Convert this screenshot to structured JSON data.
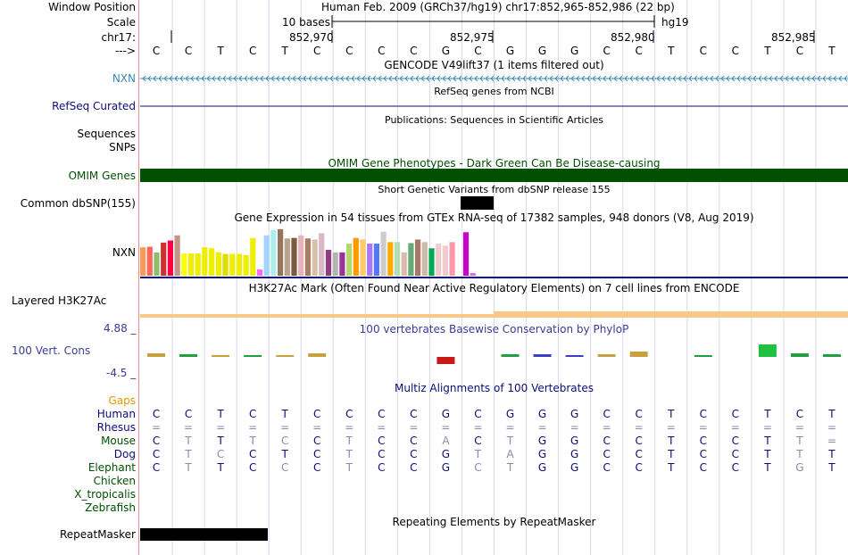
{
  "header": {
    "window_position_label": "Window Position",
    "window_position_value": "Human Feb. 2009 (GRCh37/hg19)    chr17:852,965-852,986 (22 bp)",
    "scale_label": "Scale",
    "scale_text": "10 bases",
    "scale_assembly": "hg19",
    "chrom_label": "chr17:",
    "positions": [
      "852,970",
      "852,975",
      "852,980",
      "852,985"
    ],
    "arrow_label": "--->",
    "sequence": [
      "C",
      "C",
      "T",
      "C",
      "T",
      "C",
      "C",
      "C",
      "C",
      "G",
      "C",
      "G",
      "G",
      "G",
      "C",
      "C",
      "T",
      "C",
      "C",
      "T",
      "C",
      "T"
    ]
  },
  "tracks": {
    "gencode": {
      "title": "GENCODE V49lift37 (1 items filtered out)",
      "label": "NXN",
      "color": "#3a89b4"
    },
    "refseq": {
      "title": "RefSeq genes from NCBI",
      "label": "RefSeq Curated",
      "color": "#0c0c78"
    },
    "publications": {
      "title": "Publications: Sequences in Scientific Articles",
      "label": "Sequences"
    },
    "snps": {
      "label": "SNPs"
    },
    "omim": {
      "title": "OMIM Gene Phenotypes - Dark Green Can Be Disease-causing",
      "label": "OMIM Genes",
      "color": "#005000"
    },
    "dbsnp": {
      "title": "Short Genetic Variants from dbSNP release 155",
      "label": "Common dbSNP(155)"
    },
    "gtex": {
      "title": "Gene Expression in 54 tissues from GTEx RNA-seq of 17382 samples, 948 donors (V8, Aug 2019)",
      "label": "NXN"
    },
    "h3k27ac": {
      "title": "H3K27Ac Mark (Often Found Near Active Regulatory Elements) on 7 cell lines from ENCODE",
      "label": "Layered H3K27Ac",
      "color": "#f8c888"
    },
    "phylop": {
      "title": "100 vertebrates Basewise Conservation by PhyloP",
      "label": "100 Vert. Cons",
      "max": "4.88 _",
      "min": "-4.5 _",
      "color": "#3c3c96"
    },
    "multiz": {
      "title": "Multiz Alignments of 100 Vertebrates",
      "gaps_label": "Gaps",
      "species": [
        {
          "name": "Human",
          "color": "#0c0c78",
          "bases": [
            "C",
            "C",
            "T",
            "C",
            "T",
            "C",
            "C",
            "C",
            "C",
            "G",
            "C",
            "G",
            "G",
            "G",
            "C",
            "C",
            "T",
            "C",
            "C",
            "T",
            "C",
            "T"
          ]
        },
        {
          "name": "Rhesus",
          "color": "#0c0c78",
          "bases": [
            "=",
            "=",
            "=",
            "=",
            "=",
            "=",
            "=",
            "=",
            "=",
            "=",
            "=",
            "=",
            "=",
            "=",
            "=",
            "=",
            "=",
            "=",
            "=",
            "=",
            "=",
            "="
          ]
        },
        {
          "name": "Mouse",
          "color": "#005000",
          "bases": [
            "C",
            "T",
            "T",
            "T",
            "C",
            "C",
            "T",
            "C",
            "C",
            "A",
            "C",
            "T",
            "G",
            "G",
            "C",
            "C",
            "T",
            "C",
            "C",
            "T",
            "T",
            "="
          ]
        },
        {
          "name": "Dog",
          "color": "#0c0c78",
          "bases": [
            "C",
            "T",
            "C",
            "C",
            "T",
            "C",
            "T",
            "C",
            "C",
            "G",
            "T",
            "A",
            "G",
            "G",
            "C",
            "C",
            "T",
            "C",
            "C",
            "T",
            "T",
            "T"
          ]
        },
        {
          "name": "Elephant",
          "color": "#005000",
          "bases": [
            "C",
            "T",
            "T",
            "C",
            "C",
            "C",
            "T",
            "C",
            "C",
            "G",
            "C",
            "T",
            "G",
            "G",
            "C",
            "C",
            "T",
            "C",
            "C",
            "T",
            "G",
            "T"
          ]
        },
        {
          "name": "Chicken",
          "color": "#005000",
          "bases": []
        },
        {
          "name": "X_tropicalis",
          "color": "#005000",
          "bases": []
        },
        {
          "name": "Zebrafish",
          "color": "#005000",
          "bases": []
        }
      ],
      "faded": {
        "Rhesus": [
          0,
          1,
          2,
          3,
          4,
          5,
          6,
          7,
          8,
          9,
          10,
          11,
          12,
          13,
          14,
          15,
          16,
          17,
          18,
          19,
          20,
          21
        ],
        "Mouse": [
          1,
          3,
          4,
          6,
          9,
          11,
          20,
          21
        ],
        "Dog": [
          1,
          2,
          6,
          10,
          11,
          20
        ],
        "Elephant": [
          1,
          4,
          6,
          10,
          11,
          20
        ]
      }
    },
    "repeatmasker": {
      "title": "Repeating Elements by RepeatMasker",
      "label": "RepeatMasker"
    }
  },
  "gtex_values": [
    0.55,
    0.56,
    0.45,
    0.64,
    0.68,
    0.78,
    0.43,
    0.43,
    0.43,
    0.55,
    0.53,
    0.45,
    0.42,
    0.42,
    0.42,
    0.4,
    0.73,
    0.12,
    0.78,
    0.88,
    0.9,
    0.72,
    0.73,
    0.78,
    0.72,
    0.7,
    0.82,
    0.5,
    0.45,
    0.45,
    0.62,
    0.73,
    0.7,
    0.62,
    0.62,
    0.85,
    0.65,
    0.65,
    0.45,
    0.63,
    0.7,
    0.65,
    0.53,
    0.62,
    0.58,
    0.65,
    0.92,
    0.84,
    0.05
  ],
  "gtex_colors": [
    "#ff9955",
    "#ff6655",
    "#8cbe6e",
    "#cc3030",
    "#ff0044",
    "#c69486",
    "#ffff00",
    "#eeee00",
    "#eeee00",
    "#eeee00",
    "#eeee00",
    "#eeee00",
    "#dddd00",
    "#eeee00",
    "#eeee00",
    "#eeee00",
    "#eeee00",
    "#ff66ff",
    "#a4d3ff",
    "#aaeeee",
    "#93775c",
    "#bca28a",
    "#7a5a3c",
    "#eab1bb",
    "#a57d63",
    "#dbc0a9",
    "#d9b8c5",
    "#933b80",
    "#b3b3b3",
    "#993399",
    "#b3d86e",
    "#ff9900",
    "#ffcc66",
    "#aa77ff",
    "#5577ff",
    "#cccccc",
    "#ffaa00",
    "#b3ddb3",
    "#ddbbaa",
    "#66aa77",
    "#aa7766",
    "#ccbbaa",
    "#00aa55",
    "#eecccc",
    "#eecccc",
    "#ff99aa",
    "#ffffff",
    "#cc00cc",
    "#dd66ee"
  ],
  "phylop_marks": [
    {
      "base": 0,
      "h": 4,
      "color": "#c8a040",
      "dir": "up"
    },
    {
      "base": 1,
      "h": 3,
      "color": "#20a040",
      "dir": "up"
    },
    {
      "base": 2,
      "h": 2,
      "color": "#c8a040",
      "dir": "up"
    },
    {
      "base": 3,
      "h": 2,
      "color": "#20a040",
      "dir": "up"
    },
    {
      "base": 4,
      "h": 2,
      "color": "#c8a040",
      "dir": "up"
    },
    {
      "base": 5,
      "h": 4,
      "color": "#c8a040",
      "dir": "up"
    },
    {
      "base": 9,
      "h": 8,
      "color": "#c81818",
      "dir": "down"
    },
    {
      "base": 11,
      "h": 3,
      "color": "#20a040",
      "dir": "up"
    },
    {
      "base": 12,
      "h": 3,
      "color": "#3c3cc8",
      "dir": "up"
    },
    {
      "base": 13,
      "h": 2,
      "color": "#3c3cc8",
      "dir": "up"
    },
    {
      "base": 14,
      "h": 3,
      "color": "#c8a040",
      "dir": "up"
    },
    {
      "base": 15,
      "h": 6,
      "color": "#c8a040",
      "dir": "up"
    },
    {
      "base": 17,
      "h": 2,
      "color": "#20a040",
      "dir": "up"
    },
    {
      "base": 19,
      "h": 14,
      "color": "#20c040",
      "dir": "up"
    },
    {
      "base": 20,
      "h": 4,
      "color": "#20a040",
      "dir": "up"
    },
    {
      "base": 21,
      "h": 3,
      "color": "#20a040",
      "dir": "up"
    }
  ]
}
